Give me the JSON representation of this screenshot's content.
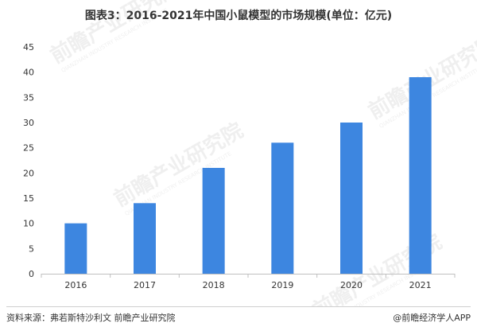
{
  "chart_data": {
    "type": "bar",
    "title": "图表3：2016-2021年中国小鼠模型的市场规模(单位：亿元)",
    "categories": [
      "2016",
      "2017",
      "2018",
      "2019",
      "2020",
      "2021"
    ],
    "values": [
      10,
      14,
      21,
      26,
      30,
      39
    ],
    "ylim": [
      0,
      45
    ],
    "yticks": [
      0,
      5,
      10,
      15,
      20,
      25,
      30,
      35,
      40,
      45
    ],
    "grid": false,
    "bar_color": "#3d86e0",
    "axis_color": "#bfbfbf"
  },
  "footer": {
    "source": "资料来源：弗若斯特沙利文 前瞻产业研究院",
    "brand": "@前瞻经济学人APP"
  },
  "watermark": {
    "text": "前瞻产业研究院",
    "subtext": "QIANZHAN INDUSTRY RESEARCH INSTITUTE"
  }
}
